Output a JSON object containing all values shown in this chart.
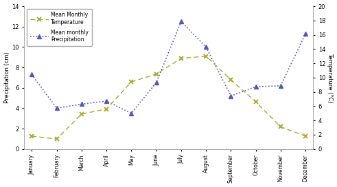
{
  "months": [
    "January",
    "February",
    "March",
    "April",
    "May",
    "June",
    "July",
    "August",
    "September",
    "October",
    "November",
    "December"
  ],
  "precipitation": [
    7.3,
    4.0,
    4.4,
    4.7,
    3.5,
    6.5,
    12.5,
    10.0,
    5.2,
    6.1,
    6.2,
    11.3
  ],
  "temperature": [
    1.8,
    1.4,
    4.9,
    5.6,
    9.4,
    10.5,
    12.7,
    13.0,
    9.7,
    6.6,
    3.1,
    1.8
  ],
  "precip_color": "#5555bb",
  "temp_color": "#aaaa33",
  "precip_label": "Mean monthly\nPrecipitation",
  "temp_label": "Mean Monthly\nTemperature",
  "ylabel_left": "Precipitation (cm)",
  "ylabel_right": "Temperature (°C)",
  "ylim_left": [
    0,
    14
  ],
  "ylim_right": [
    0,
    20
  ],
  "yticks_left": [
    0,
    2,
    4,
    6,
    8,
    10,
    12,
    14
  ],
  "yticks_right": [
    0,
    2,
    4,
    6,
    8,
    10,
    12,
    14,
    16,
    18,
    20
  ],
  "background_color": "#ffffff",
  "fig_width": 4.91,
  "fig_height": 2.72,
  "dpi": 100
}
